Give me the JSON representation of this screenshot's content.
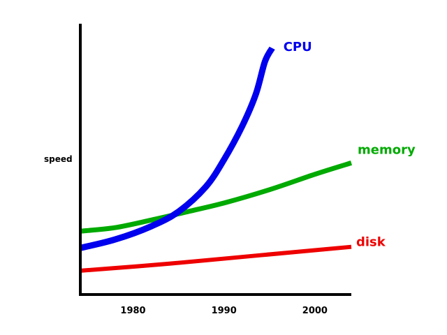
{
  "chart_data": {
    "type": "line",
    "title": "",
    "xlabel": "",
    "ylabel": "speed",
    "xlim": [
      1974.2,
      2004.0
    ],
    "ylim": [
      0,
      100
    ],
    "x_ticks": [
      {
        "value": 1980,
        "label": "1980"
      },
      {
        "value": 1990,
        "label": "1990"
      },
      {
        "value": 2000,
        "label": "2000"
      }
    ],
    "y_ticks": [],
    "grid": false,
    "legend": "inline labels at series ends",
    "series": [
      {
        "name": "CPU",
        "color": "#0000ee",
        "points": [
          {
            "x": 1974.2,
            "y": 17.2
          },
          {
            "x": 1978.0,
            "y": 20.3
          },
          {
            "x": 1982.0,
            "y": 25.2
          },
          {
            "x": 1985.0,
            "y": 30.6
          },
          {
            "x": 1988.0,
            "y": 39.8
          },
          {
            "x": 1990.0,
            "y": 49.8
          },
          {
            "x": 1992.0,
            "y": 62.2
          },
          {
            "x": 1993.5,
            "y": 74.0
          },
          {
            "x": 1994.5,
            "y": 86.0
          },
          {
            "x": 1995.3,
            "y": 91.0
          }
        ]
      },
      {
        "name": "memory",
        "color": "#00aa00",
        "points": [
          {
            "x": 1974.2,
            "y": 23.4
          },
          {
            "x": 1978.0,
            "y": 24.7
          },
          {
            "x": 1982.0,
            "y": 27.5
          },
          {
            "x": 1986.0,
            "y": 30.6
          },
          {
            "x": 1990.0,
            "y": 33.8
          },
          {
            "x": 1995.0,
            "y": 38.7
          },
          {
            "x": 2000.0,
            "y": 44.4
          },
          {
            "x": 2004.0,
            "y": 48.6
          }
        ]
      },
      {
        "name": "disk",
        "color": "#ee0000",
        "points": [
          {
            "x": 1974.2,
            "y": 8.8
          },
          {
            "x": 1984.0,
            "y": 11.4
          },
          {
            "x": 1994.0,
            "y": 14.5
          },
          {
            "x": 2004.0,
            "y": 17.6
          }
        ]
      }
    ]
  }
}
